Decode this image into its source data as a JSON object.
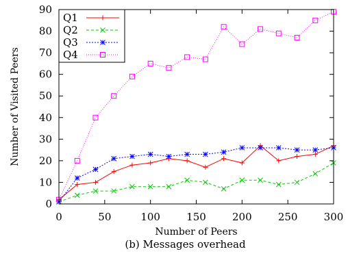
{
  "caption": "(b) Messages overhead",
  "chart_data": {
    "type": "line",
    "xlabel": "Number of Peers",
    "ylabel": "Number of Visited Peers",
    "xlim": [
      0,
      300
    ],
    "ylim": [
      0,
      90
    ],
    "xticks": [
      0,
      50,
      100,
      150,
      200,
      250,
      300
    ],
    "yticks": [
      0,
      10,
      20,
      30,
      40,
      50,
      60,
      70,
      80,
      90
    ],
    "grid": false,
    "legend_position": "top-left",
    "x": [
      0,
      20,
      40,
      60,
      80,
      100,
      120,
      140,
      160,
      180,
      200,
      220,
      240,
      260,
      280,
      300
    ],
    "series": [
      {
        "name": "Q1",
        "color": "#ff0000",
        "dash": "solid",
        "marker": "plus",
        "values": [
          2,
          9,
          10,
          15,
          18,
          19,
          21,
          20,
          17,
          21,
          19,
          27,
          20,
          22,
          23,
          27
        ]
      },
      {
        "name": "Q2",
        "color": "#00cc00",
        "dash": "dashed",
        "marker": "cross",
        "values": [
          1,
          4,
          6,
          6,
          8,
          8,
          8,
          11,
          10,
          7,
          11,
          11,
          9,
          10,
          14,
          19
        ]
      },
      {
        "name": "Q3",
        "color": "#0000ff",
        "dash": "dotted",
        "marker": "asterisk",
        "values": [
          1,
          12,
          16,
          21,
          22,
          23,
          22,
          23,
          23,
          24,
          26,
          26,
          26,
          25,
          25,
          26
        ]
      },
      {
        "name": "Q4",
        "color": "#ff00ff",
        "dash": "fine-dotted",
        "marker": "square",
        "values": [
          2,
          20,
          40,
          50,
          59,
          65,
          63,
          68,
          67,
          82,
          74,
          81,
          79,
          77,
          85,
          89
        ]
      }
    ]
  }
}
